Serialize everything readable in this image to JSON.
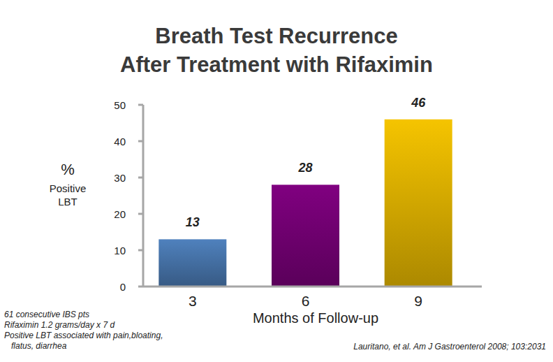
{
  "chart_data": {
    "type": "bar",
    "title": "Breath Test Recurrence",
    "subtitle": "After Treatment with Rifaximin",
    "y_label": "% Positive LBT",
    "x_label": "Months of Follow-up",
    "categories": [
      "3",
      "6",
      "9"
    ],
    "values": [
      13,
      28,
      46
    ],
    "colors": [
      "#4f81bd",
      "#800080",
      "#f5c400"
    ],
    "ylim": [
      0,
      50
    ],
    "yticks": [
      0,
      10,
      20,
      30,
      40,
      50
    ],
    "grid": false,
    "data_labels": true,
    "annotations": [
      "61 consecutive IBS pts",
      "Rifaximin 1.2 grams/day x 7 d",
      "Positive LBT associated with pain,bloating,",
      "flatus, diarrhea"
    ],
    "source": "Lauritano, et al. Am J Gastroenterol 2008; 103:2031"
  }
}
